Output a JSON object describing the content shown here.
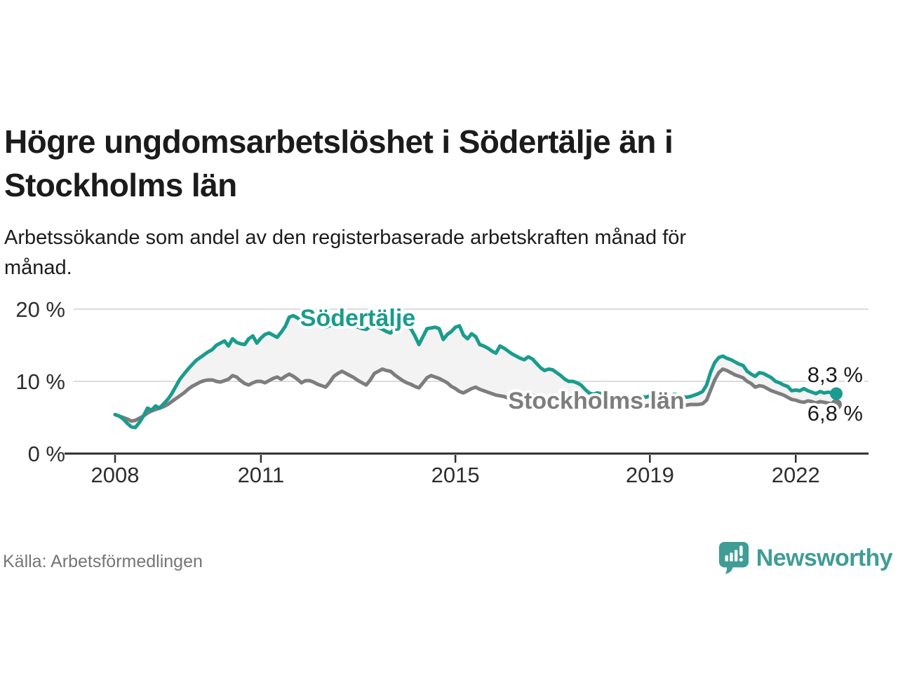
{
  "header": {
    "title_line1": "Högre ungdomsarbetslöshet i Södertälje än i",
    "title_line2": "Stockholms län",
    "subtitle_line1": "Arbetssökande som andel av den registerbaserade arbetskraften månad för",
    "subtitle_line2": "månad."
  },
  "footer": {
    "source": "Källa: Arbetsförmedlingen",
    "brand": "Newsworthy"
  },
  "colors": {
    "teal": "#199c8d",
    "gray": "#7d7d7d",
    "band": "#f3f3f3",
    "grid": "#dcdcdc",
    "axis": "#2e2e2e",
    "tick_text": "#2e2e2e",
    "value_text": "#1c1c1c",
    "brand_teal": "#3f9d96"
  },
  "chart_data": {
    "type": "line",
    "x_frequency": "monthly",
    "x_start": "2008-01",
    "x_end": "2022-11",
    "ylim": [
      0,
      21.5
    ],
    "grid": "horizontal",
    "band_fill_between_series": true,
    "legend_position": "inline-labels",
    "y_ticks": [
      {
        "label": "20 %",
        "value": 20
      },
      {
        "label": "10 %",
        "value": 10
      },
      {
        "label": "0 %",
        "value": 0
      }
    ],
    "x_ticks": [
      {
        "label": "2008",
        "month_index": 0
      },
      {
        "label": "2011",
        "month_index": 36
      },
      {
        "label": "2015",
        "month_index": 84
      },
      {
        "label": "2019",
        "month_index": 132
      },
      {
        "label": "2022",
        "month_index": 168
      }
    ],
    "series": [
      {
        "name": "Södertälje",
        "color": "#199c8d",
        "end_label": "8,3 %",
        "last_value": 8.3,
        "values": [
          5.4,
          5.2,
          4.8,
          4.2,
          3.7,
          3.6,
          4.3,
          5.2,
          6.3,
          6.0,
          6.6,
          6.3,
          6.9,
          7.5,
          8.3,
          9.3,
          10.3,
          11.0,
          11.7,
          12.3,
          12.9,
          13.3,
          13.7,
          14.1,
          14.4,
          15.0,
          15.3,
          15.6,
          14.9,
          15.9,
          15.4,
          15.2,
          15.1,
          15.9,
          16.3,
          15.3,
          16.0,
          16.5,
          16.7,
          16.4,
          16.1,
          16.8,
          17.6,
          18.9,
          19.1,
          18.8,
          18.4,
          19.0,
          19.2,
          18.8,
          18.3,
          17.9,
          17.5,
          17.7,
          18.4,
          18.6,
          18.3,
          18.0,
          17.8,
          17.7,
          17.5,
          17.3,
          17.2,
          17.6,
          17.8,
          17.5,
          17.2,
          16.9,
          16.7,
          17.3,
          18.0,
          17.8,
          17.6,
          17.3,
          16.3,
          15.1,
          16.2,
          17.3,
          17.4,
          17.5,
          17.3,
          15.8,
          16.5,
          16.9,
          17.5,
          17.7,
          16.4,
          15.9,
          16.6,
          16.2,
          15.1,
          14.9,
          14.6,
          14.2,
          13.9,
          14.9,
          14.6,
          14.2,
          13.8,
          13.5,
          13.2,
          13.0,
          13.4,
          13.1,
          12.5,
          11.9,
          11.5,
          11.7,
          11.6,
          11.2,
          10.8,
          10.3,
          10.0,
          10.0,
          9.8,
          9.5,
          8.9,
          8.4,
          8.2,
          8.4,
          8.3,
          8.0,
          7.7,
          7.5,
          7.8,
          7.9,
          7.6,
          7.3,
          7.4,
          7.7,
          7.9,
          7.8,
          8.0,
          8.2,
          8.1,
          7.9,
          7.8,
          8.0,
          8.2,
          8.1,
          7.9,
          7.8,
          7.9,
          8.1,
          8.3,
          8.6,
          9.5,
          11.3,
          12.6,
          13.3,
          13.5,
          13.2,
          13.0,
          12.7,
          12.4,
          12.2,
          11.4,
          11.0,
          10.7,
          11.2,
          11.1,
          10.8,
          10.5,
          10.0,
          9.8,
          9.5,
          9.3,
          8.7,
          8.8,
          8.7,
          9.0,
          8.7,
          8.5,
          8.3,
          8.6,
          8.4,
          8.5,
          8.4,
          8.3
        ]
      },
      {
        "name": "Stockholms län",
        "color": "#7d7d7d",
        "end_label": "6,8 %",
        "last_value": 6.8,
        "values": [
          5.4,
          5.2,
          5.0,
          4.8,
          4.5,
          4.6,
          4.9,
          5.2,
          5.6,
          5.9,
          6.1,
          6.3,
          6.5,
          6.8,
          7.2,
          7.6,
          8.0,
          8.4,
          8.9,
          9.3,
          9.6,
          9.9,
          10.1,
          10.2,
          10.2,
          10.0,
          9.9,
          10.1,
          10.3,
          10.8,
          10.6,
          10.1,
          9.7,
          9.5,
          9.8,
          10.0,
          10.0,
          9.8,
          10.1,
          10.4,
          10.6,
          10.3,
          10.7,
          11.0,
          10.7,
          10.3,
          9.8,
          10.1,
          10.1,
          9.9,
          9.6,
          9.4,
          9.2,
          9.9,
          10.7,
          11.1,
          11.4,
          11.1,
          10.8,
          10.5,
          10.1,
          9.8,
          9.5,
          10.2,
          11.1,
          11.4,
          11.7,
          11.5,
          11.4,
          10.9,
          10.5,
          10.1,
          9.8,
          9.6,
          9.3,
          9.1,
          9.8,
          10.5,
          10.8,
          10.6,
          10.4,
          10.1,
          9.8,
          9.3,
          9.0,
          8.6,
          8.4,
          8.7,
          9.0,
          9.2,
          8.9,
          8.7,
          8.5,
          8.3,
          8.1,
          8.0,
          7.9,
          7.7,
          7.6,
          7.8,
          8.0,
          8.1,
          8.3,
          8.1,
          7.9,
          7.7,
          7.5,
          7.4,
          7.3,
          7.2,
          7.1,
          7.2,
          7.4,
          7.5,
          7.6,
          7.4,
          7.2,
          7.0,
          6.9,
          6.8,
          6.7,
          6.6,
          6.5,
          6.4,
          6.6,
          6.7,
          6.8,
          6.6,
          6.5,
          6.4,
          6.5,
          6.6,
          6.7,
          6.8,
          6.7,
          6.6,
          6.7,
          6.9,
          6.8,
          6.7,
          6.6,
          6.7,
          6.8,
          6.8,
          6.8,
          6.9,
          7.4,
          8.8,
          10.2,
          11.2,
          11.7,
          11.5,
          11.2,
          10.9,
          10.7,
          10.5,
          10.0,
          9.7,
          9.2,
          9.4,
          9.3,
          9.0,
          8.7,
          8.5,
          8.3,
          8.1,
          7.8,
          7.5,
          7.4,
          7.2,
          7.1,
          7.3,
          7.2,
          7.0,
          7.2,
          7.1,
          7.0,
          6.9,
          6.8
        ]
      }
    ]
  }
}
